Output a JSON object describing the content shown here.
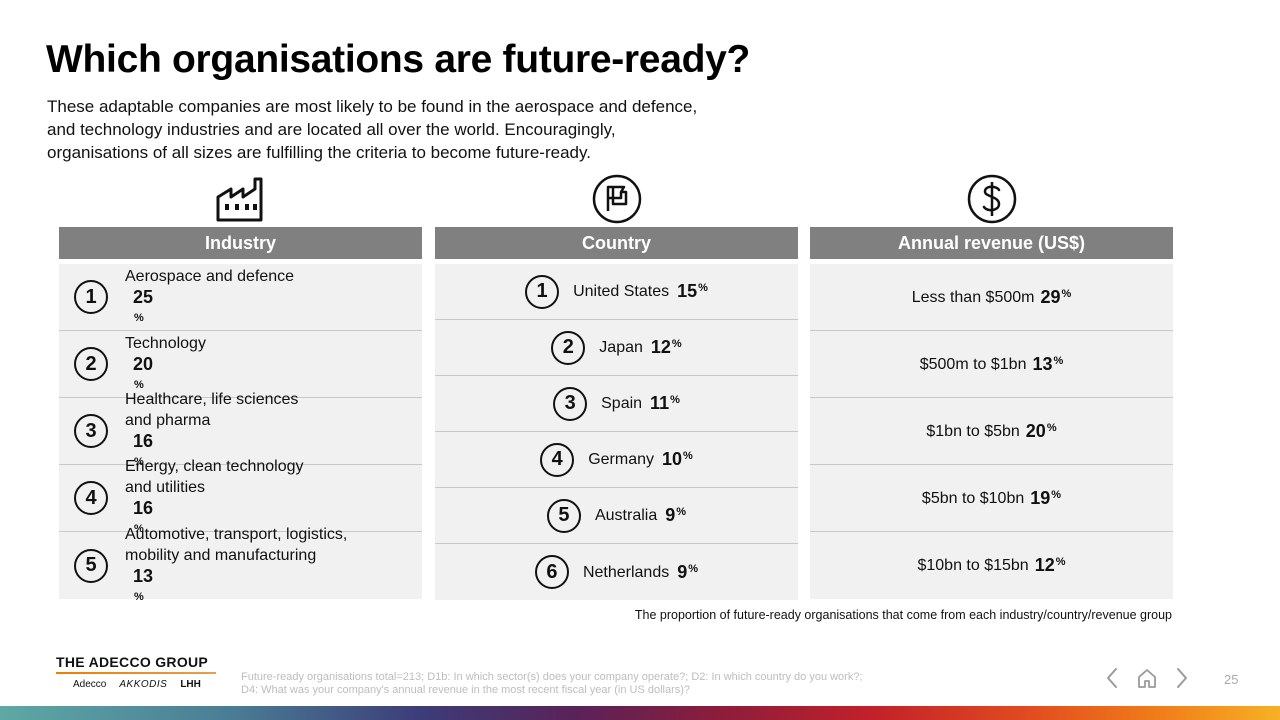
{
  "title": "Which organisations are future-ready?",
  "intro_lines": [
    "These adaptable companies are most likely to be found in the aerospace and defence,",
    "and technology industries and are located all over the world. Encouragingly,",
    "organisations of all sizes are fulfilling the criteria to become future-ready."
  ],
  "industry": {
    "icon": "factory-icon",
    "header": "Industry",
    "rows": [
      {
        "rank": "1",
        "lines": [
          "Aerospace and defence"
        ],
        "pct": "25"
      },
      {
        "rank": "2",
        "lines": [
          "Technology"
        ],
        "pct": "20"
      },
      {
        "rank": "3",
        "lines": [
          "Healthcare, life sciences",
          "and pharma"
        ],
        "pct": "16"
      },
      {
        "rank": "4",
        "lines": [
          "Energy, clean technology",
          "and utilities"
        ],
        "pct": "16"
      },
      {
        "rank": "5",
        "lines": [
          "Automotive, transport, logistics,",
          "mobility and manufacturing"
        ],
        "pct": "13"
      }
    ]
  },
  "country": {
    "icon": "flag-icon",
    "header": "Country",
    "rows": [
      {
        "rank": "1",
        "label": "United States",
        "pct": "15"
      },
      {
        "rank": "2",
        "label": "Japan",
        "pct": "12"
      },
      {
        "rank": "3",
        "label": "Spain",
        "pct": "11"
      },
      {
        "rank": "4",
        "label": "Germany",
        "pct": "10"
      },
      {
        "rank": "5",
        "label": "Australia",
        "pct": "9"
      },
      {
        "rank": "6",
        "label": "Netherlands",
        "pct": "9"
      }
    ]
  },
  "revenue": {
    "icon": "dollar-icon",
    "header": "Annual revenue (US$)",
    "rows": [
      {
        "label": "Less than $500m",
        "pct": "29"
      },
      {
        "label": "$500m to $1bn",
        "pct": "13"
      },
      {
        "label": "$1bn to $5bn",
        "pct": "20"
      },
      {
        "label": "$5bn to $10bn",
        "pct": "19"
      },
      {
        "label": "$10bn to $15bn",
        "pct": "12"
      }
    ]
  },
  "pct_symbol": "%",
  "caption": "The proportion of future-ready organisations that come from each industry/country/revenue group",
  "logo": {
    "main": "THE ADECCO GROUP",
    "brands": [
      "Adecco",
      "AKKODIS",
      "LHH"
    ]
  },
  "footnote_lines": [
    "Future-ready organisations total=213; D1b: In which sector(s) does your company operate?; D2: In which country do you work?;",
    "D4: What was your company's annual revenue in the most recent fiscal year (in US dollars)?"
  ],
  "nav": {
    "prev_icon": "chevron-left-icon",
    "home_icon": "home-icon",
    "next_icon": "chevron-right-icon"
  },
  "page_number": "25"
}
